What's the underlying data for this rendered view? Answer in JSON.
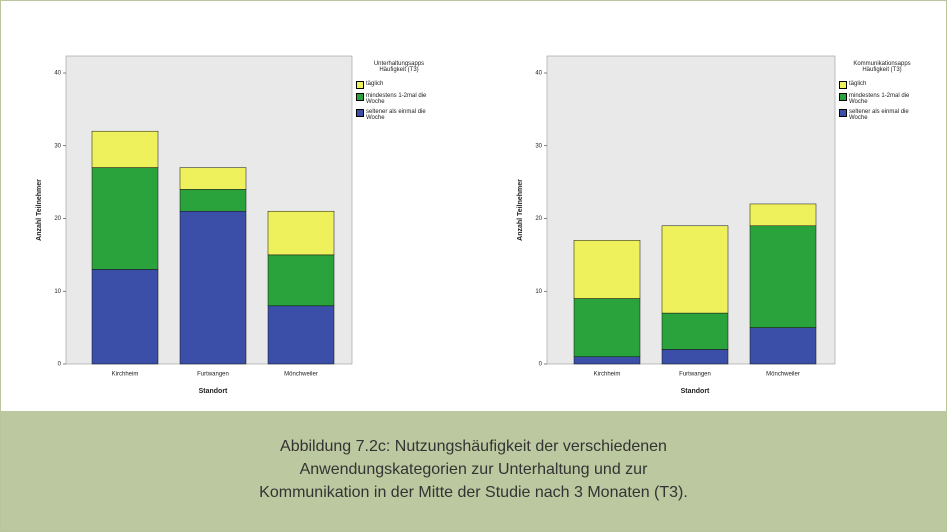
{
  "chart_data": [
    {
      "type": "bar",
      "stacked": true,
      "xlabel": "Standort",
      "ylabel": "Anzahl Teilnehmer",
      "legend_title": [
        "Unterhaltungsapps",
        "Häufigkeit (T3)"
      ],
      "categories": [
        "Kirchheim",
        "Furtwangen",
        "Mönchweiler"
      ],
      "series": [
        {
          "name": "seltener als einmal die Woche",
          "color": "#3b4fa8",
          "values": [
            13,
            21,
            8
          ]
        },
        {
          "name": "mindestens 1-2mal die Woche",
          "color": "#2ba33c",
          "values": [
            14,
            3,
            7
          ]
        },
        {
          "name": "täglich",
          "color": "#eef05c",
          "values": [
            5,
            3,
            6
          ]
        }
      ],
      "ylim": [
        0,
        40
      ],
      "yticks": [
        0,
        10,
        20,
        30,
        40
      ]
    },
    {
      "type": "bar",
      "stacked": true,
      "xlabel": "Standort",
      "ylabel": "Anzahl Teilnehmer",
      "legend_title": [
        "Kommunikationsapps",
        "Häufigkeit (T3)"
      ],
      "categories": [
        "Kirchheim",
        "Furtwangen",
        "Mönchweiler"
      ],
      "series": [
        {
          "name": "seltener als einmal die Woche",
          "color": "#3b4fa8",
          "values": [
            1,
            2,
            5
          ]
        },
        {
          "name": "mindestens 1-2mal die Woche",
          "color": "#2ba33c",
          "values": [
            8,
            5,
            14
          ]
        },
        {
          "name": "täglich",
          "color": "#eef05c",
          "values": [
            8,
            12,
            3
          ]
        }
      ],
      "ylim": [
        0,
        40
      ],
      "yticks": [
        0,
        10,
        20,
        30,
        40
      ]
    }
  ],
  "caption": [
    "Abbildung 7.2c: Nutzungshäufigkeit der verschiedenen",
    "Anwendungskategorien zur Unterhaltung und zur",
    "Kommunikation in der Mitte der Studie nach 3 Monaten (T3)."
  ]
}
